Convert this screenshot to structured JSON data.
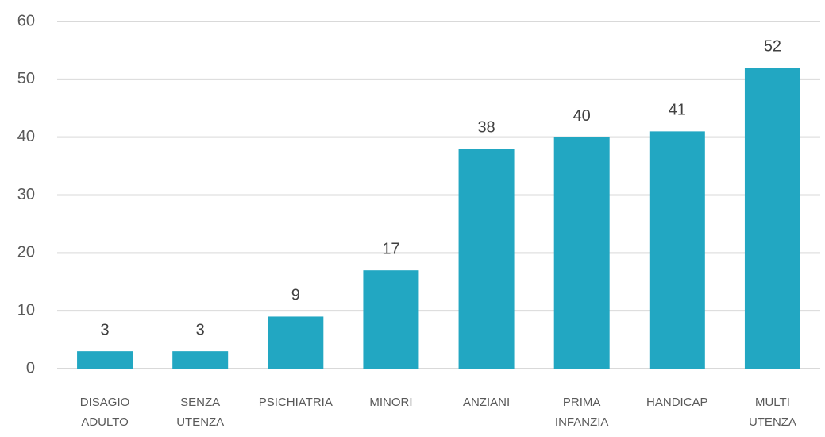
{
  "chart_data": {
    "type": "bar",
    "categories": [
      "DISAGIO ADULTO",
      "SENZA UTENZA",
      "PSICHIATRIA",
      "MINORI",
      "ANZIANI",
      "PRIMA INFANZIA",
      "HANDICAP",
      "MULTI UTENZA"
    ],
    "values": [
      3,
      3,
      9,
      17,
      38,
      40,
      41,
      52
    ],
    "color": "#22a7c2",
    "ylim": [
      0,
      60
    ],
    "yticks": [
      0,
      10,
      20,
      30,
      40,
      50,
      60
    ],
    "grid": true
  }
}
